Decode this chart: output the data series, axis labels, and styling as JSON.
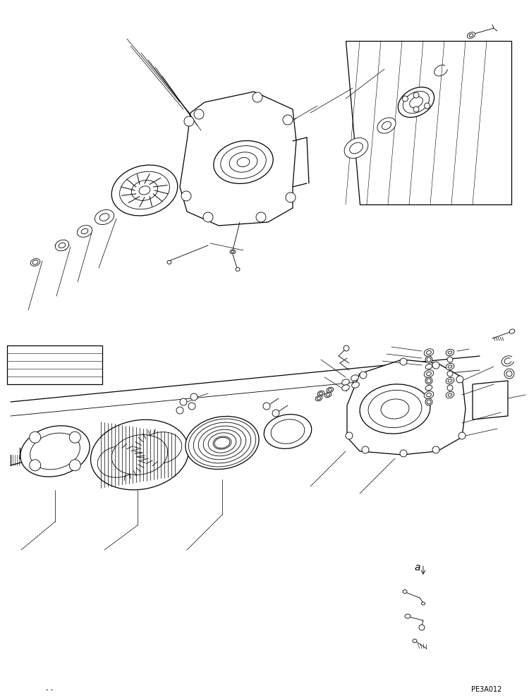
{
  "background_color": "#ffffff",
  "line_color": "#000000",
  "fig_width": 7.5,
  "fig_height": 9.9,
  "dpi": 100,
  "bottom_left_text": "- -",
  "bottom_right_text": "PE3A012",
  "label_a": "a",
  "font_size_bottom": 7,
  "font_size_label": 9,
  "lw_thin": 0.6,
  "lw_med": 0.9,
  "lw_thick": 1.3
}
